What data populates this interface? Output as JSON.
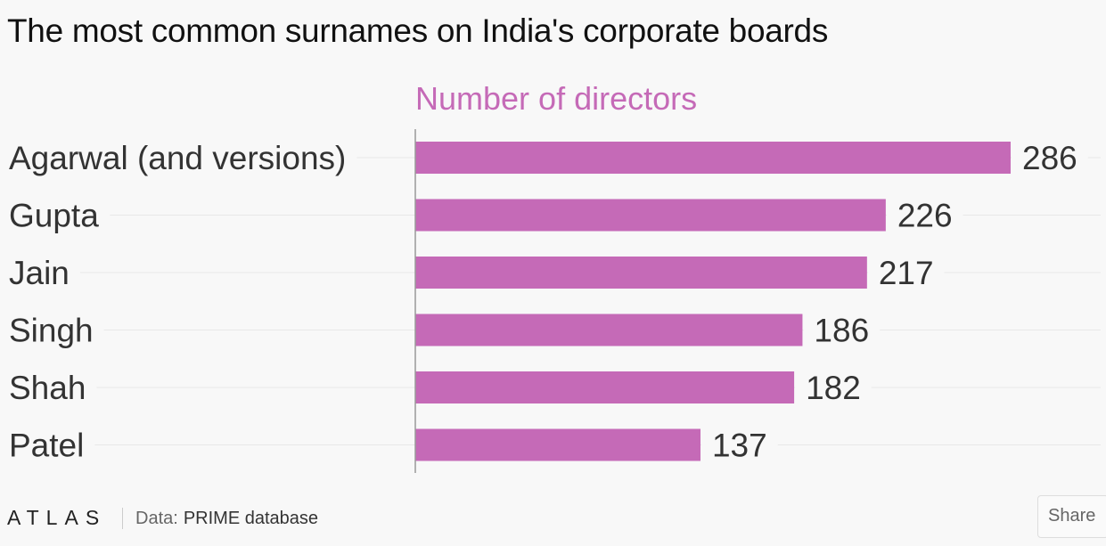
{
  "title": "The most common surnames on India's corporate boards",
  "chart_data": {
    "type": "bar",
    "orientation": "horizontal",
    "series_label": "Number of directors",
    "categories": [
      "Agarwal (and versions)",
      "Gupta",
      "Jain",
      "Singh",
      "Shah",
      "Patel"
    ],
    "values": [
      286,
      226,
      217,
      186,
      182,
      137
    ],
    "xlim": [
      0,
      286
    ],
    "grid": true,
    "colors": {
      "bar": "#c56ab7",
      "series_label": "#c56ab7",
      "category_text": "#333333",
      "value_text": "#333333",
      "gridline": "#e8e8e8"
    }
  },
  "footer": {
    "logo": "ATLAS",
    "data_label": "Data:",
    "source": "PRIME database",
    "share_label": "Share"
  }
}
